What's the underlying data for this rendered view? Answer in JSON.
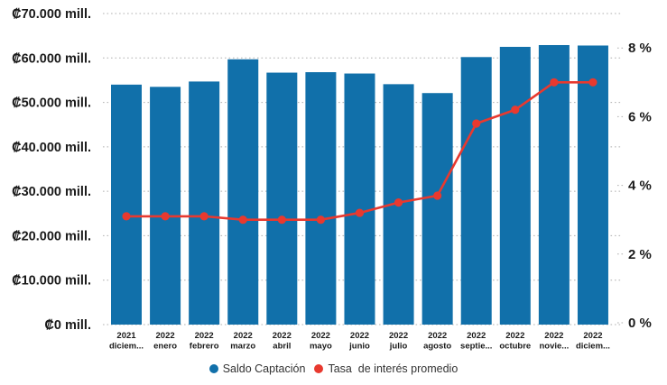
{
  "chart_data": {
    "type": "bar",
    "subtype": "bar+line combo, dual axis",
    "title": "",
    "categories": [
      {
        "year": "2021",
        "month": "diciem..."
      },
      {
        "year": "2022",
        "month": "enero"
      },
      {
        "year": "2022",
        "month": "febrero"
      },
      {
        "year": "2022",
        "month": "marzo"
      },
      {
        "year": "2022",
        "month": "abril"
      },
      {
        "year": "2022",
        "month": "mayo"
      },
      {
        "year": "2022",
        "month": "junio"
      },
      {
        "year": "2022",
        "month": "julio"
      },
      {
        "year": "2022",
        "month": "agosto"
      },
      {
        "year": "2022",
        "month": "septie..."
      },
      {
        "year": "2022",
        "month": "octubre"
      },
      {
        "year": "2022",
        "month": "novie..."
      },
      {
        "year": "2022",
        "month": "diciem..."
      }
    ],
    "series": [
      {
        "name": "Saldo Captación",
        "type": "bar",
        "axis": "left",
        "color": "#1170aa",
        "values": [
          54000,
          53500,
          54700,
          59700,
          56700,
          56800,
          56500,
          54100,
          52100,
          60200,
          62500,
          62900,
          62800
        ]
      },
      {
        "name": "Tasa  de interés promedio",
        "type": "line",
        "axis": "right",
        "color": "#e8392f",
        "values": [
          3.1,
          3.1,
          3.1,
          3.0,
          3.0,
          3.0,
          3.2,
          3.5,
          3.7,
          5.8,
          6.2,
          7.0,
          7.0
        ]
      }
    ],
    "left_axis": {
      "unit": "₡ mill.",
      "min": 0,
      "max": 70000,
      "ticks": [
        {
          "value": 70000,
          "label": "₡70.000 mill."
        },
        {
          "value": 60000,
          "label": "₡60.000 mill."
        },
        {
          "value": 50000,
          "label": "₡50.000 mill."
        },
        {
          "value": 40000,
          "label": "₡40.000 mill."
        },
        {
          "value": 30000,
          "label": "₡30.000 mill."
        },
        {
          "value": 20000,
          "label": "₡20.000 mill."
        },
        {
          "value": 10000,
          "label": "₡10.000 mill."
        },
        {
          "value": 0,
          "label": "₡0 mill."
        }
      ]
    },
    "right_axis": {
      "unit": "%",
      "min": 0,
      "max": 8,
      "ticks": [
        {
          "value": 8,
          "label": "8 %"
        },
        {
          "value": 6,
          "label": "6 %"
        },
        {
          "value": 4,
          "label": "4 %"
        },
        {
          "value": 2,
          "label": "2 %"
        },
        {
          "value": 0,
          "label": "0 %"
        }
      ]
    },
    "grid": "horizontal dotted lines, light gray",
    "legend_position": "bottom-center",
    "colors": {
      "bar": "#1170aa",
      "line": "#e8392f",
      "grid": "#b0b0b0",
      "axis_text": "#1a1a1a",
      "legend_text": "#333333",
      "background": "#ffffff"
    }
  }
}
